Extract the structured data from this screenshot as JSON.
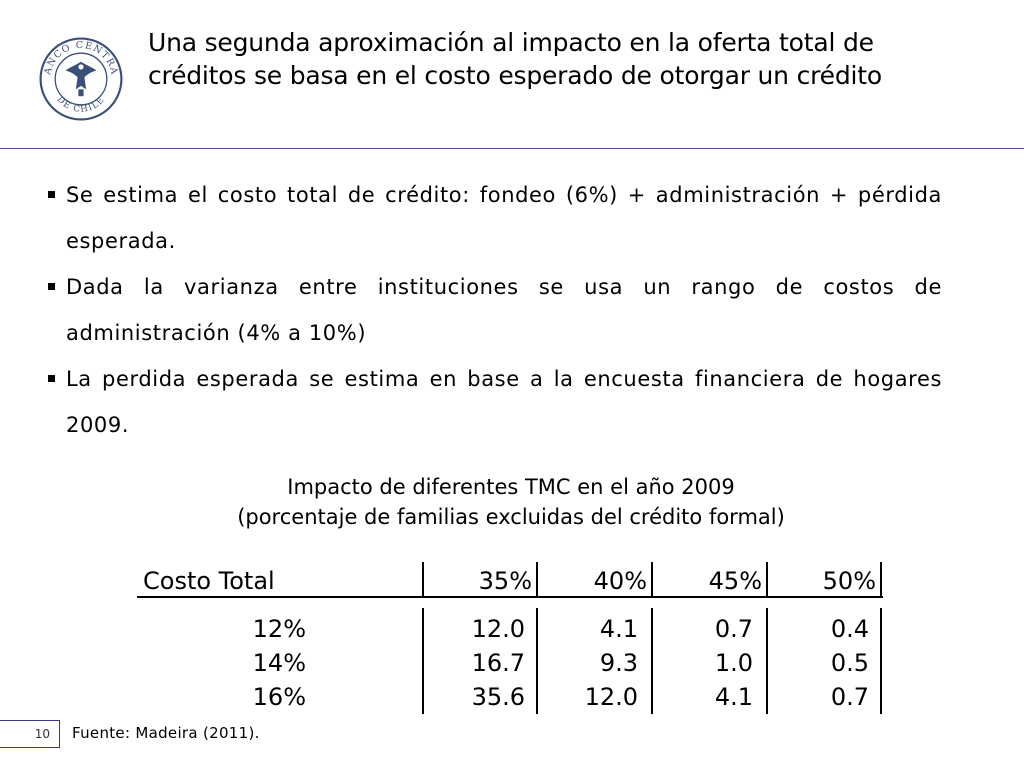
{
  "logo": {
    "ring_text_top": "BANCO CENTRAL",
    "ring_text_bottom": "DE CHILE",
    "color": "#3a4f7a"
  },
  "title": "Una segunda aproximación al impacto en la oferta total de créditos se basa en el costo esperado de otorgar un crédito",
  "bullets": [
    "Se estima el costo total de crédito: fondeo (6%) + administración + pérdida esperada.",
    "Dada la varianza entre instituciones se usa un rango de costos de administración (4% a 10%)",
    "La perdida esperada se estima en base a la encuesta financiera de hogares 2009."
  ],
  "table": {
    "title": "Impacto de diferentes TMC en el año 2009",
    "subtitle": "(porcentaje de familias excluidas del crédito formal)",
    "header": [
      "Costo Total",
      "35%",
      "40%",
      "45%",
      "50%"
    ],
    "rows": [
      [
        "12%",
        "12.0",
        "4.1",
        "0.7",
        "0.4"
      ],
      [
        "14%",
        "16.7",
        "9.3",
        "1.0",
        "0.5"
      ],
      [
        "16%",
        "35.6",
        "12.0",
        "4.1",
        "0.7"
      ]
    ]
  },
  "footer": {
    "page": "10",
    "source": "Fuente: Madeira (2011)."
  },
  "colors": {
    "accent_rule": "#4a4a9a",
    "logo": "#3a4f7a"
  }
}
